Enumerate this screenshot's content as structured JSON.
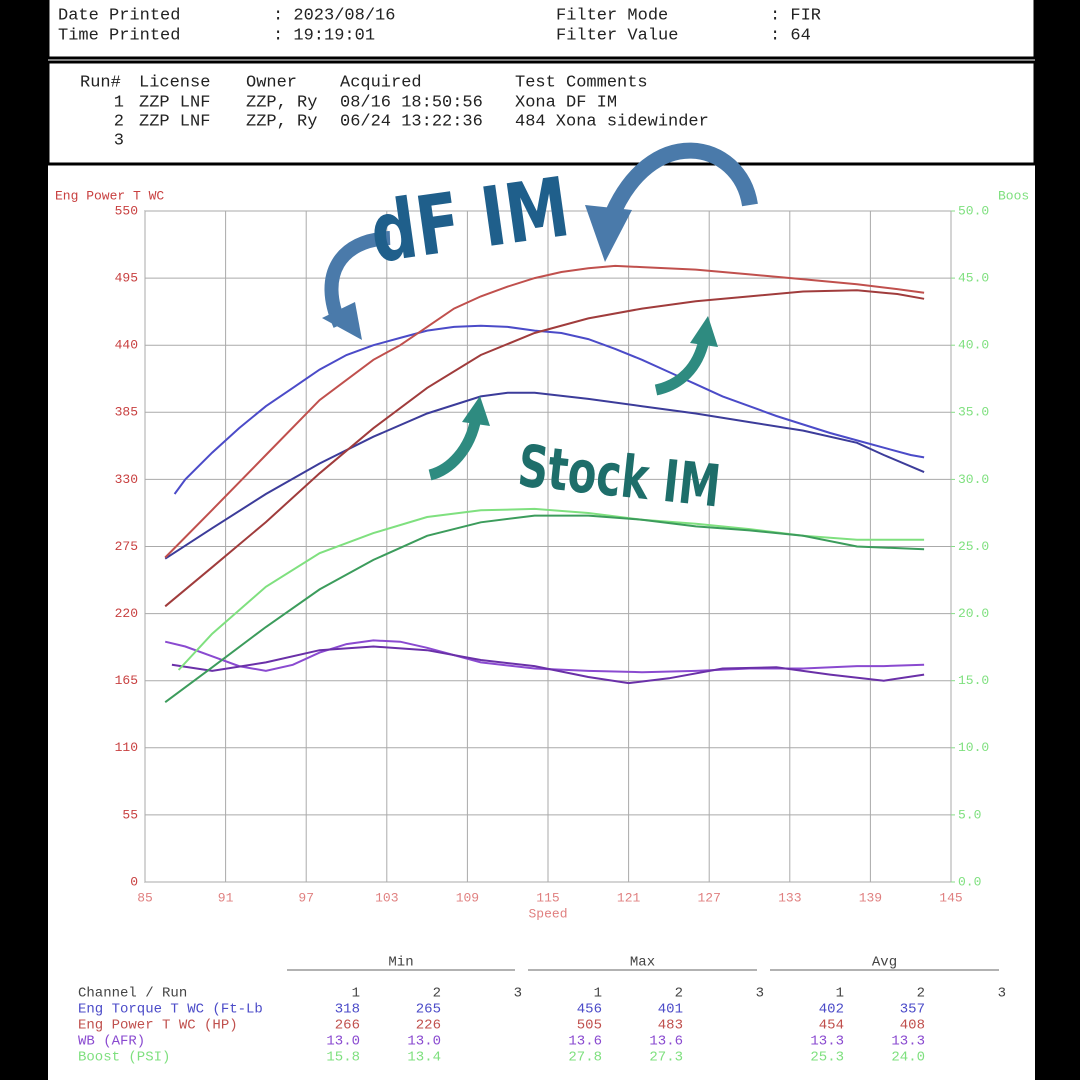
{
  "header": {
    "rows": [
      {
        "label": "Date Printed",
        "value": ": 2023/08/16",
        "label2": "Filter Mode",
        "value2": ": FIR"
      },
      {
        "label": "Time Printed",
        "value": ": 19:19:01",
        "label2": "Filter Value",
        "value2": ": 64"
      }
    ]
  },
  "runs": {
    "columns": [
      "Run#",
      "License",
      "Owner",
      "Acquired",
      "Test Comments"
    ],
    "rows": [
      [
        "1",
        "ZZP LNF",
        "ZZP, Ry",
        "08/16 18:50:56",
        "Xona DF IM"
      ],
      [
        "2",
        "ZZP LNF",
        "ZZP, Ry",
        "06/24 13:22:36",
        "484 Xona sidewinder"
      ],
      [
        "3"
      ]
    ]
  },
  "chart_data": {
    "type": "line",
    "y_label": "Eng Power T WC",
    "y2_label": "Boos",
    "x_label": "Speed",
    "xlim": [
      85,
      145
    ],
    "xticks": [
      85,
      91,
      97,
      103,
      109,
      115,
      121,
      127,
      133,
      139,
      145
    ],
    "ylim": [
      0,
      550
    ],
    "yticks": [
      0,
      55,
      110,
      165,
      220,
      275,
      330,
      385,
      440,
      495,
      550
    ],
    "y2lim": [
      0,
      50
    ],
    "y2ticks": [
      {
        "value": 0,
        "label": "0.0"
      },
      {
        "value": 5,
        "label": "5.0"
      },
      {
        "value": 10,
        "label": "10.0"
      },
      {
        "value": 15,
        "label": "15.0"
      },
      {
        "value": 20,
        "label": "20.0"
      },
      {
        "value": 25,
        "label": "25.0"
      },
      {
        "value": 30,
        "label": "30.0"
      },
      {
        "value": 35,
        "label": "35.0"
      },
      {
        "value": 40,
        "label": "40.0"
      },
      {
        "value": 45,
        "label": "45.0"
      },
      {
        "value": 50,
        "label": "50.0"
      }
    ],
    "grid": true,
    "series": [
      {
        "color": "#4b4bc8",
        "x": [
          87.2,
          88,
          90,
          92,
          94,
          96,
          98,
          100,
          102,
          104,
          106,
          108,
          110,
          112,
          114,
          116,
          118,
          120,
          122,
          124,
          126,
          128,
          130,
          132,
          134,
          136,
          138,
          140,
          142,
          143
        ],
        "values": [
          318,
          330,
          352,
          372,
          390,
          405,
          420,
          432,
          440,
          446,
          452,
          455,
          456,
          455,
          452,
          450,
          445,
          437,
          428,
          418,
          408,
          398,
          390,
          382,
          375,
          368,
          362,
          356,
          350,
          348
        ]
      },
      {
        "color": "#3c3c9a",
        "x": [
          86.5,
          90,
          94,
          98,
          102,
          106,
          110,
          112,
          114,
          118,
          122,
          126,
          130,
          134,
          138,
          140,
          143
        ],
        "values": [
          265,
          290,
          318,
          343,
          365,
          384,
          398,
          401,
          401,
          396,
          390,
          384,
          377,
          370,
          360,
          350,
          336
        ]
      },
      {
        "color": "#c0504d",
        "x": [
          86.5,
          90,
          94,
          98,
          102,
          104,
          106,
          108,
          110,
          112,
          114,
          116,
          118,
          120,
          122,
          126,
          130,
          134,
          138,
          141,
          143
        ],
        "values": [
          266,
          305,
          350,
          395,
          428,
          440,
          455,
          470,
          480,
          488,
          495,
          500,
          503,
          505,
          504,
          502,
          498,
          494,
          490,
          486,
          483
        ]
      },
      {
        "color": "#a03c3c",
        "x": [
          86.5,
          90,
          94,
          98,
          102,
          106,
          110,
          114,
          118,
          122,
          126,
          130,
          134,
          138,
          141,
          143
        ],
        "values": [
          226,
          258,
          295,
          335,
          372,
          405,
          432,
          450,
          462,
          470,
          476,
          480,
          484,
          485,
          482,
          478
        ]
      },
      {
        "color": "#8a4ad0",
        "x": [
          86.5,
          88,
          90,
          92,
          94,
          96,
          98,
          100,
          102,
          104,
          106,
          108,
          110,
          114,
          118,
          122,
          126,
          130,
          134,
          138,
          140,
          143
        ],
        "values": [
          197,
          193,
          185,
          177,
          173,
          178,
          188,
          195,
          198,
          197,
          192,
          186,
          180,
          175,
          173,
          172,
          173,
          175,
          175,
          177,
          177,
          178
        ]
      },
      {
        "color": "#6a30a8",
        "x": [
          87,
          90,
          94,
          98,
          102,
          106,
          110,
          114,
          118,
          121,
          124,
          128,
          132,
          136,
          140,
          143
        ],
        "values": [
          178,
          173,
          180,
          190,
          193,
          190,
          182,
          177,
          168,
          163,
          167,
          175,
          176,
          170,
          165,
          170
        ]
      },
      {
        "color": "#7fe07f",
        "axis": "y2",
        "x": [
          87.5,
          90,
          94,
          98,
          102,
          106,
          110,
          114,
          118,
          122,
          126,
          130,
          134,
          138,
          143
        ],
        "values": [
          15.8,
          18.5,
          22,
          24.5,
          26,
          27.2,
          27.7,
          27.8,
          27.5,
          27,
          26.7,
          26.3,
          25.8,
          25.5,
          25.5
        ]
      },
      {
        "color": "#3c9c5c",
        "axis": "y2",
        "x": [
          86.5,
          90,
          94,
          98,
          102,
          106,
          110,
          114,
          118,
          122,
          126,
          130,
          134,
          138,
          143
        ],
        "values": [
          13.4,
          16,
          19,
          21.8,
          24,
          25.8,
          26.8,
          27.3,
          27.3,
          27,
          26.5,
          26.2,
          25.8,
          25,
          24.8
        ]
      }
    ],
    "annotations": [
      "dF IM",
      "Stock IM"
    ]
  },
  "stats": {
    "sections": [
      "Min",
      "Max",
      "Avg"
    ],
    "channel_header": "Channel / Run",
    "runs": [
      "1",
      "2",
      "3"
    ],
    "rows": [
      {
        "channel": "Eng Torque T WC (Ft-Lb",
        "color": "#4b4bc8",
        "values": [
          "318",
          "265",
          "456",
          "401",
          "402",
          "357"
        ]
      },
      {
        "channel": "Eng Power T WC (HP)",
        "color": "#c0504d",
        "values": [
          "266",
          "226",
          "505",
          "483",
          "454",
          "408"
        ]
      },
      {
        "channel": "WB (AFR)",
        "color": "#8a4ad0",
        "values": [
          "13.0",
          "13.0",
          "13.6",
          "13.6",
          "13.3",
          "13.3"
        ]
      },
      {
        "channel": "Boost (PSI)",
        "color": "#7fe07f",
        "values": [
          "15.8",
          "13.4",
          "27.8",
          "27.3",
          "25.3",
          "24.0"
        ]
      }
    ]
  }
}
